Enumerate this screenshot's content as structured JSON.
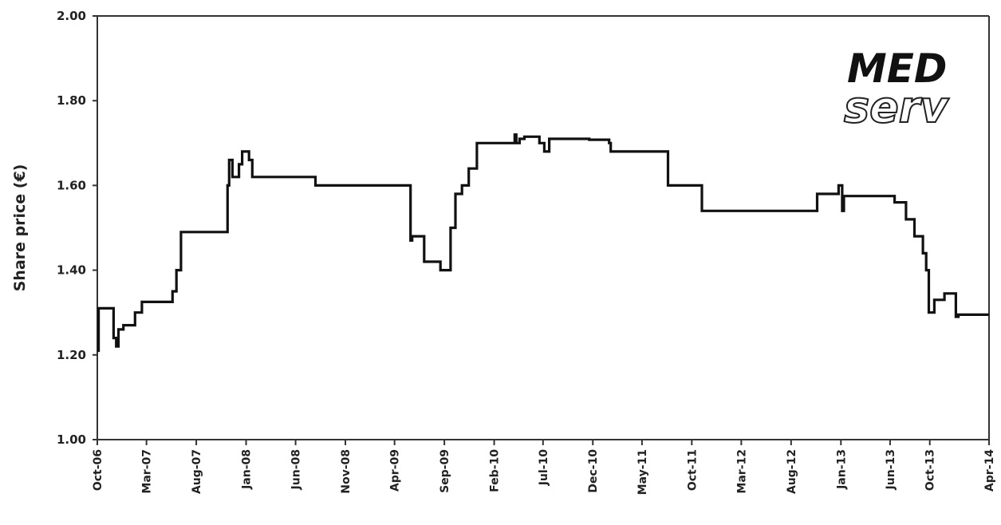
{
  "chart_data": {
    "type": "line",
    "title": "",
    "xlabel": "",
    "ylabel": "Share price (€)",
    "ylim": [
      1.0,
      2.0
    ],
    "yticks": [
      "1.00",
      "1.20",
      "1.40",
      "1.60",
      "1.80",
      "2.00"
    ],
    "x_tick_labels": [
      "Oct-06",
      "Mar-07",
      "Aug-07",
      "Jan-08",
      "Jun-08",
      "Nov-08",
      "Apr-09",
      "Sep-09",
      "Feb-10",
      "Jul-10",
      "Dec-10",
      "May-11",
      "Oct-11",
      "Mar-12",
      "Aug-12",
      "Jan-13",
      "Jun-13",
      "Oct-13",
      "Apr-14"
    ],
    "x_tick_dates": [
      "2006-10",
      "2007-03",
      "2007-08",
      "2008-01",
      "2008-06",
      "2008-11",
      "2009-04",
      "2009-09",
      "2010-02",
      "2010-07",
      "2010-12",
      "2011-05",
      "2011-10",
      "2012-03",
      "2012-08",
      "2013-01",
      "2013-06",
      "2013-10",
      "2014-04"
    ],
    "grid": false,
    "logo": "MED serv",
    "series": [
      {
        "x": [
          "2006-10-01",
          "2006-10-05",
          "2006-11-10",
          "2006-11-20",
          "2006-11-28",
          "2006-12-05",
          "2006-12-20",
          "2007-01-25",
          "2007-02-15",
          "2007-05-15",
          "2007-05-20",
          "2007-06-01",
          "2007-06-15",
          "2007-11-01",
          "2007-11-05",
          "2007-11-10",
          "2007-11-20",
          "2007-12-10",
          "2007-12-20",
          "2008-01-10",
          "2008-01-20",
          "2008-05-20",
          "2008-08-01",
          "2009-03-15",
          "2009-05-20",
          "2009-05-25",
          "2009-07-01",
          "2009-08-20",
          "2009-09-01",
          "2009-09-20",
          "2009-10-05",
          "2009-10-25",
          "2009-11-15",
          "2009-12-10",
          "2010-01-20",
          "2010-04-05",
          "2010-04-10",
          "2010-04-20",
          "2010-05-05",
          "2010-06-20",
          "2010-07-05",
          "2010-07-20",
          "2010-10-15",
          "2010-11-20",
          "2011-01-20",
          "2011-01-25",
          "2011-04-25",
          "2011-07-20",
          "2011-11-01",
          "2012-10-20",
          "2012-11-25",
          "2012-12-25",
          "2013-01-05",
          "2013-01-10",
          "2013-02-10",
          "2013-05-15",
          "2013-06-15",
          "2013-07-20",
          "2013-08-15",
          "2013-09-10",
          "2013-09-20",
          "2013-09-28",
          "2013-10-15",
          "2013-11-15",
          "2013-12-20",
          "2013-12-28",
          "2014-04-01"
        ],
        "values": [
          1.21,
          1.31,
          1.31,
          1.24,
          1.22,
          1.26,
          1.27,
          1.3,
          1.325,
          1.325,
          1.35,
          1.4,
          1.49,
          1.49,
          1.6,
          1.66,
          1.62,
          1.65,
          1.68,
          1.66,
          1.62,
          1.62,
          1.6,
          1.6,
          1.47,
          1.48,
          1.42,
          1.4,
          1.4,
          1.5,
          1.58,
          1.6,
          1.64,
          1.7,
          1.7,
          1.72,
          1.7,
          1.71,
          1.715,
          1.7,
          1.68,
          1.71,
          1.71,
          1.708,
          1.7,
          1.68,
          1.68,
          1.6,
          1.54,
          1.58,
          1.58,
          1.6,
          1.54,
          1.575,
          1.575,
          1.575,
          1.56,
          1.52,
          1.48,
          1.44,
          1.4,
          1.3,
          1.33,
          1.345,
          1.29,
          1.295,
          1.295
        ]
      }
    ]
  }
}
